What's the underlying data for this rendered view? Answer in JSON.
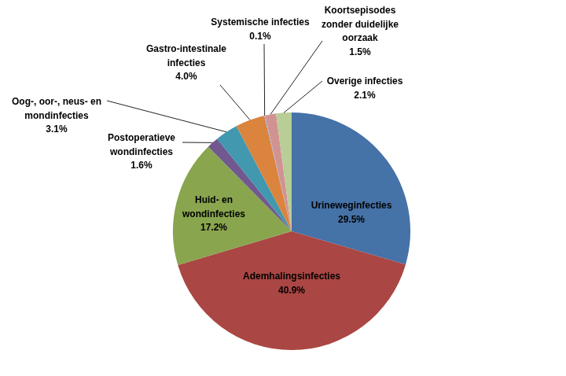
{
  "chart_data": {
    "type": "pie",
    "categories": [
      "Urineweginfecties",
      "Ademhalingsinfecties",
      "Huid- en wondinfecties",
      "Postoperatieve wondinfecties",
      "Oog-, oor-, neus- en mondinfecties",
      "Gastro-intestinale infecties",
      "Systemische infecties",
      "Koortsepisodes zonder duidelijke oorzaak",
      "Overige infecties"
    ],
    "values": [
      29.5,
      40.9,
      17.2,
      1.6,
      3.1,
      4.0,
      0.1,
      1.5,
      2.1
    ],
    "value_labels": [
      "29.5%",
      "40.9%",
      "17.2%",
      "1.6%",
      "3.1%",
      "4.0%",
      "0.1%",
      "1.5%",
      "2.1%"
    ],
    "colors": [
      "#4572a7",
      "#aa4643",
      "#89a54e",
      "#71588f",
      "#4198af",
      "#db843d",
      "#93a9cf",
      "#d19392",
      "#b9cd96"
    ],
    "data_labels": true
  }
}
